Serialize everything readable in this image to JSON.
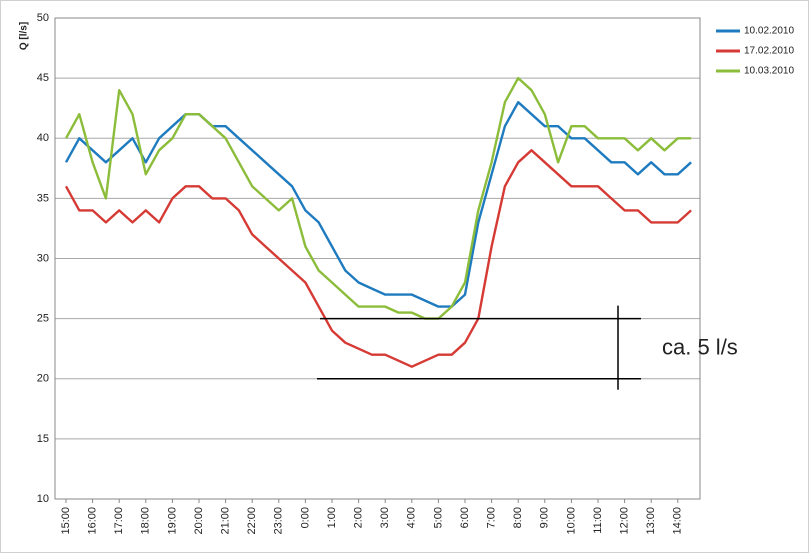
{
  "chart_data": {
    "type": "line",
    "y_label": "Q [l/s]",
    "categories": [
      "15:00",
      null,
      "16:00",
      null,
      "17:00",
      null,
      "18:00",
      null,
      "19:00",
      null,
      "20:00",
      null,
      "21:00",
      null,
      "22:00",
      null,
      "23:00",
      null,
      "0:00",
      null,
      "1:00",
      null,
      "2:00",
      null,
      "3:00",
      null,
      "4:00",
      null,
      "5:00",
      null,
      "6:00",
      null,
      "7:00",
      null,
      "8:00",
      null,
      "9:00",
      null,
      "10:00",
      null,
      "11:00",
      null,
      "12:00",
      null,
      "13:00",
      null,
      "14:00",
      null
    ],
    "series": [
      {
        "name": "10.02.2010",
        "color": "#1f7bbf",
        "values": [
          38,
          40,
          39,
          38,
          39,
          40,
          38,
          40,
          41,
          42,
          42,
          41,
          41,
          40,
          39,
          38,
          37,
          36,
          34,
          33,
          31,
          29,
          28,
          27.5,
          27,
          27,
          27,
          26.5,
          26,
          26,
          27,
          33,
          37,
          41,
          43,
          42,
          41,
          41,
          40,
          40,
          39,
          38,
          38,
          37,
          38,
          37,
          37,
          38
        ]
      },
      {
        "name": "17.02.2010",
        "color": "#d63a34",
        "values": [
          36,
          34,
          34,
          33,
          34,
          33,
          34,
          33,
          35,
          36,
          36,
          35,
          35,
          34,
          32,
          31,
          30,
          29,
          28,
          26,
          24,
          23,
          22.5,
          22,
          22,
          21.5,
          21,
          21.5,
          22,
          22,
          23,
          25,
          31,
          36,
          38,
          39,
          38,
          37,
          36,
          36,
          36,
          35,
          34,
          34,
          33,
          33,
          33,
          34
        ]
      },
      {
        "name": "10.03.2010",
        "color": "#8cbd3a",
        "values": [
          40,
          42,
          38,
          35,
          44,
          42,
          37,
          39,
          40,
          42,
          42,
          41,
          40,
          38,
          36,
          35,
          34,
          35,
          31,
          29,
          28,
          27,
          26,
          26,
          26,
          25.5,
          25.5,
          25,
          25,
          26,
          28,
          34,
          38,
          43,
          45,
          44,
          42,
          38,
          41,
          41,
          40,
          40,
          40,
          39,
          40,
          39,
          40,
          40
        ]
      }
    ],
    "ylim": [
      10,
      50
    ],
    "yticks": [
      10,
      15,
      20,
      25,
      30,
      35,
      40,
      45,
      50
    ],
    "grid": true,
    "legend": "top-right",
    "annotation": {
      "text": "ca. 5 l/s",
      "upper": 25,
      "lower": 20
    }
  }
}
